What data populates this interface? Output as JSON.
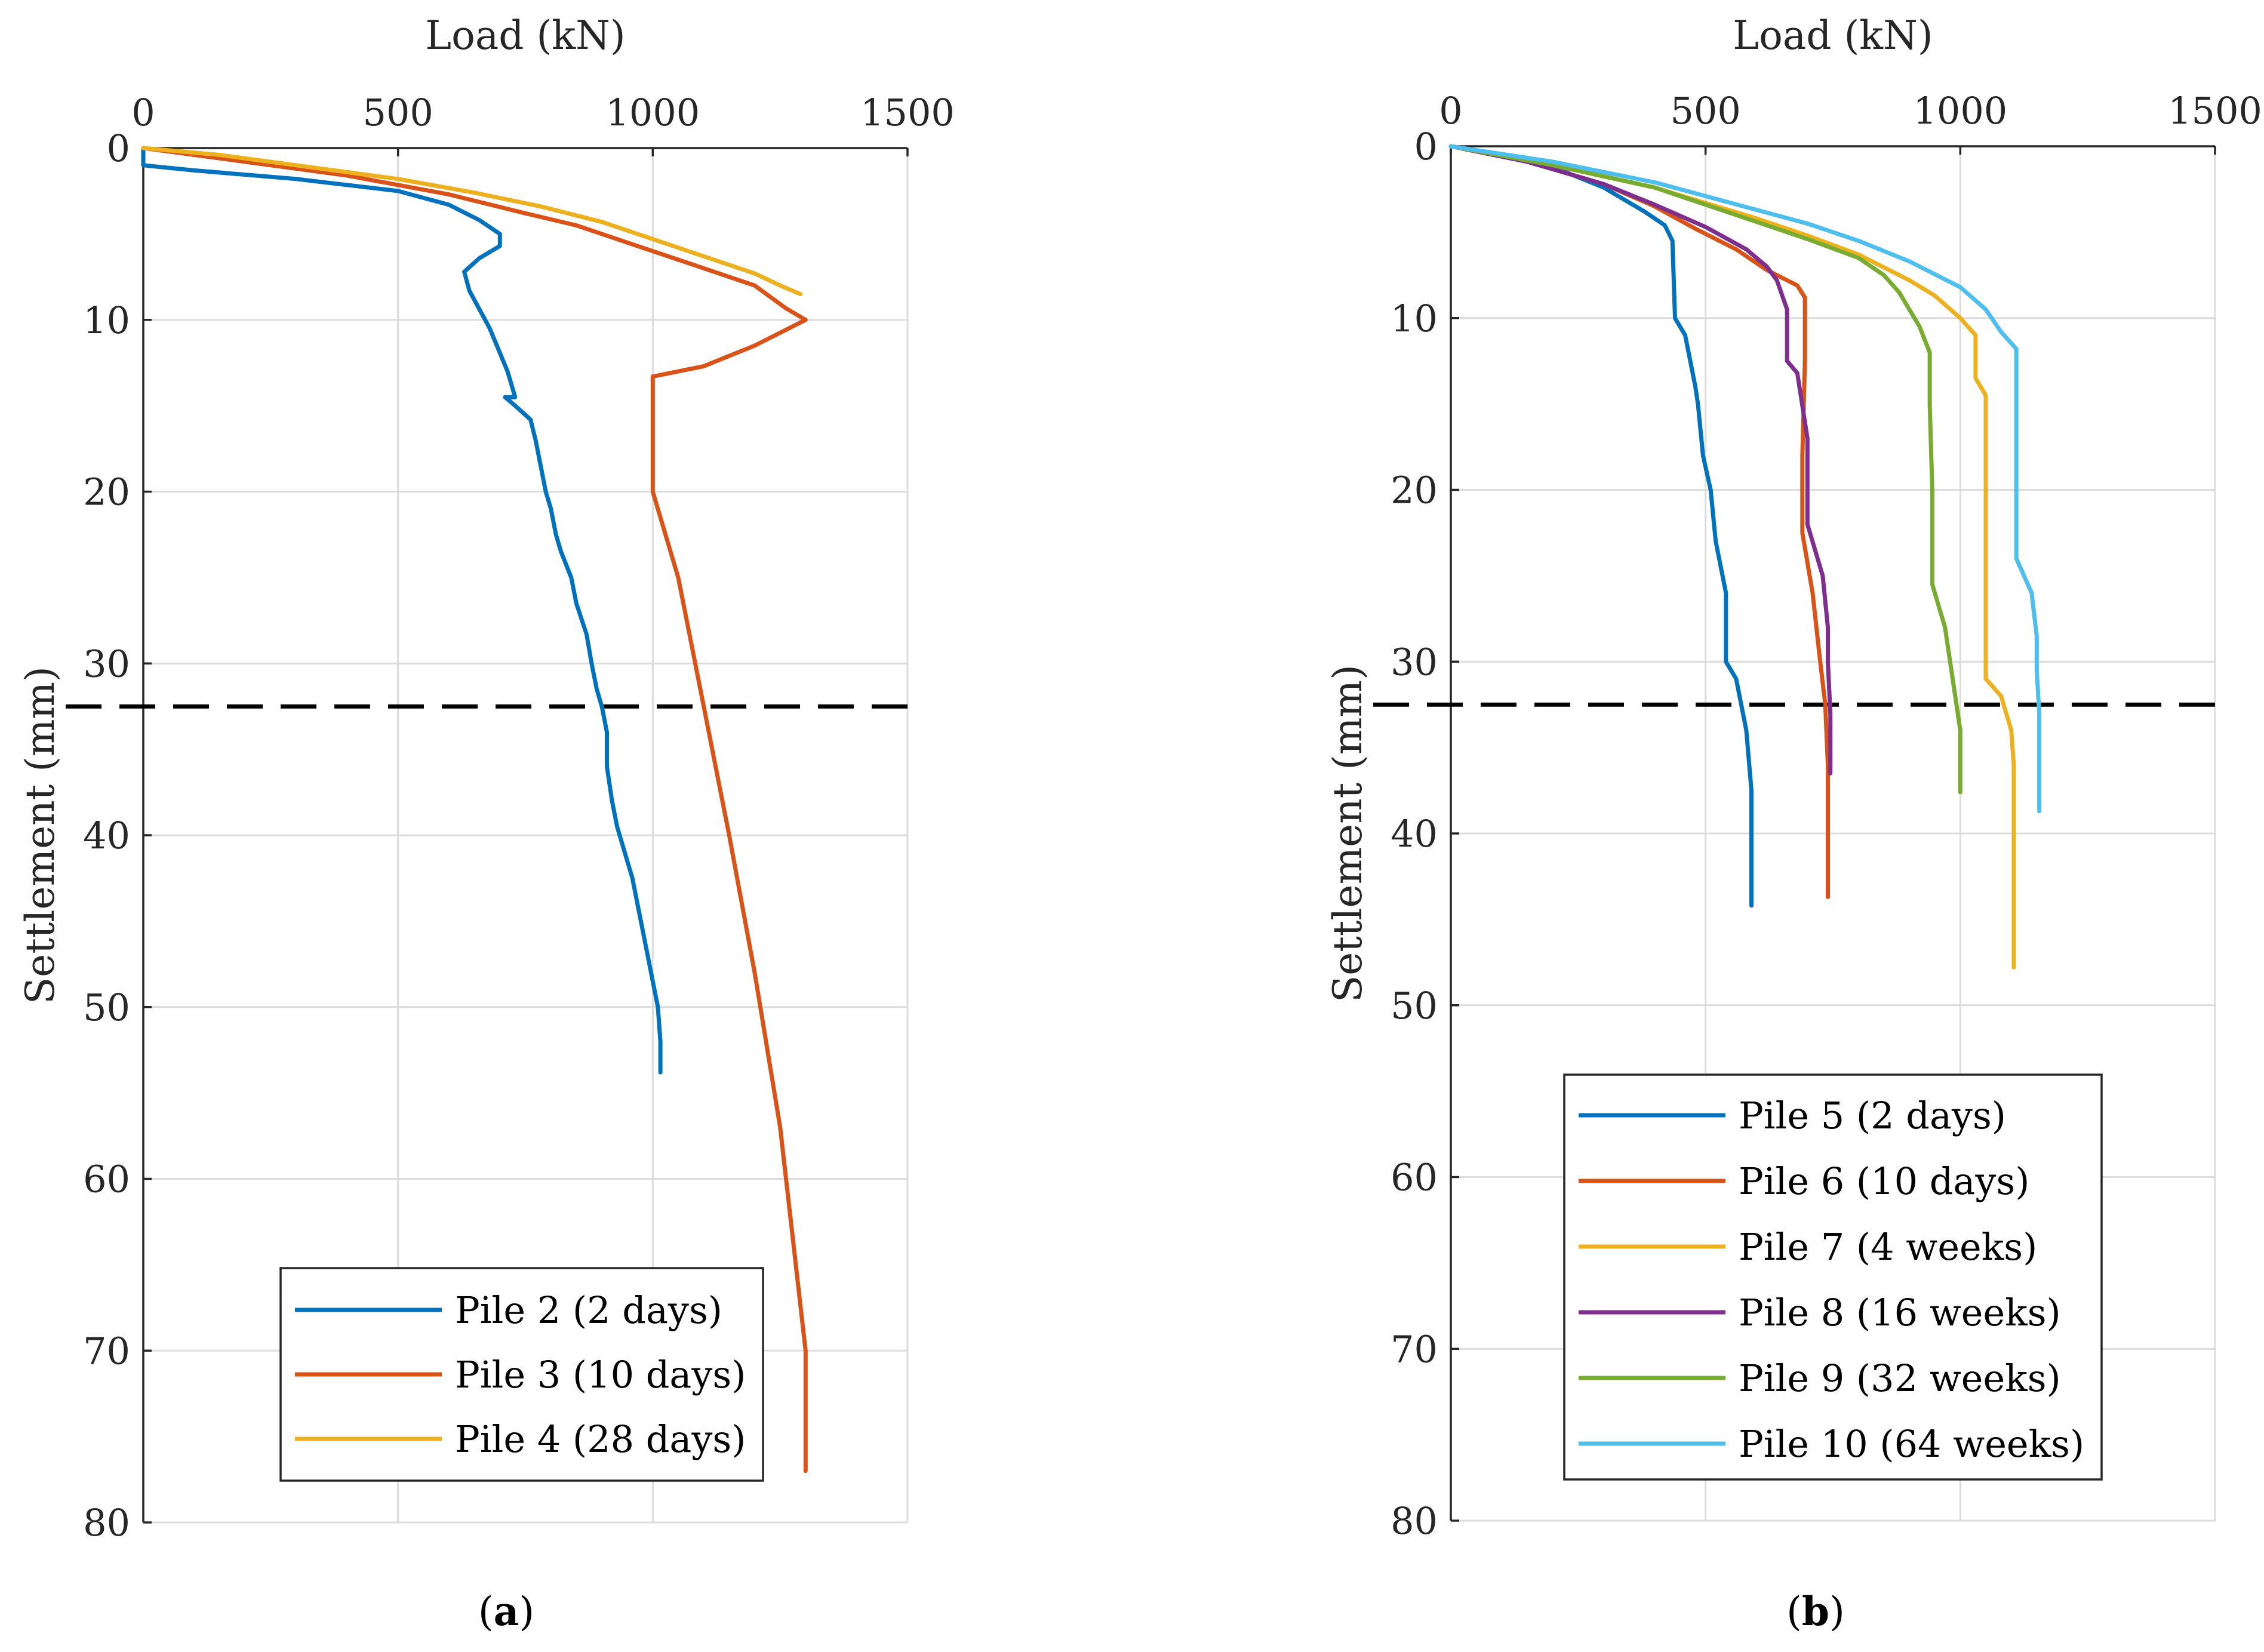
{
  "chart_data": [
    {
      "type": "line",
      "panel_label": "a",
      "xlabel": "Load (kN)",
      "ylabel": "Settlement (mm)",
      "xlim": [
        0,
        1500
      ],
      "ylim": [
        0,
        80
      ],
      "y_reversed": true,
      "x_axis_position": "top",
      "xticks": [
        0,
        500,
        1000,
        1500
      ],
      "yticks": [
        0,
        10,
        20,
        30,
        40,
        50,
        60,
        70,
        80
      ],
      "grid": true,
      "reference_line": {
        "style": "dashed",
        "color": "#000000",
        "y": 32.5
      },
      "legend": {
        "position": "bottom-right"
      },
      "series": [
        {
          "name": "Pile 2 (2 days)",
          "color": "#0072BD",
          "points": [
            [
              0,
              0
            ],
            [
              0,
              1
            ],
            [
              100,
              1.3
            ],
            [
              300,
              1.8
            ],
            [
              500,
              2.5
            ],
            [
              600,
              3.3
            ],
            [
              660,
              4.2
            ],
            [
              700,
              5
            ],
            [
              700,
              5.7
            ],
            [
              660,
              6.4
            ],
            [
              630,
              7.2
            ],
            [
              640,
              8.3
            ],
            [
              680,
              10.5
            ],
            [
              715,
              13
            ],
            [
              730,
              14.5
            ],
            [
              710,
              14.5
            ],
            [
              730,
              15
            ],
            [
              760,
              15.8
            ],
            [
              770,
              17
            ],
            [
              780,
              18.5
            ],
            [
              790,
              20
            ],
            [
              800,
              21
            ],
            [
              810,
              22.5
            ],
            [
              820,
              23.5
            ],
            [
              840,
              25
            ],
            [
              850,
              26.5
            ],
            [
              870,
              28.3
            ],
            [
              880,
              30
            ],
            [
              890,
              31.5
            ],
            [
              900,
              32.5
            ],
            [
              910,
              34
            ],
            [
              910,
              36
            ],
            [
              920,
              38
            ],
            [
              930,
              39.5
            ],
            [
              945,
              41
            ],
            [
              960,
              42.5
            ],
            [
              970,
              44
            ],
            [
              980,
              45.5
            ],
            [
              990,
              47
            ],
            [
              1000,
              48.5
            ],
            [
              1010,
              50
            ],
            [
              1015,
              52
            ],
            [
              1015,
              53.8
            ]
          ]
        },
        {
          "name": "Pile 3 (10 days)",
          "color": "#D95319",
          "points": [
            [
              0,
              0
            ],
            [
              200,
              0.8
            ],
            [
              400,
              1.6
            ],
            [
              600,
              2.7
            ],
            [
              750,
              3.8
            ],
            [
              850,
              4.5
            ],
            [
              950,
              5.5
            ],
            [
              1050,
              6.5
            ],
            [
              1150,
              7.5
            ],
            [
              1200,
              8
            ],
            [
              1260,
              9.3
            ],
            [
              1300,
              10
            ],
            [
              1200,
              11.5
            ],
            [
              1100,
              12.7
            ],
            [
              1000,
              13.3
            ],
            [
              1000,
              14.5
            ],
            [
              1000,
              17
            ],
            [
              1000,
              20
            ],
            [
              1050,
              25
            ],
            [
              1100,
              32.5
            ],
            [
              1150,
              40
            ],
            [
              1200,
              48
            ],
            [
              1250,
              57
            ],
            [
              1300,
              70
            ],
            [
              1300,
              77
            ]
          ]
        },
        {
          "name": "Pile 4 (28 days)",
          "color": "#EDB120",
          "points": [
            [
              0,
              0
            ],
            [
              150,
              0.4
            ],
            [
              300,
              1
            ],
            [
              500,
              1.8
            ],
            [
              650,
              2.6
            ],
            [
              780,
              3.4
            ],
            [
              900,
              4.3
            ],
            [
              1000,
              5.3
            ],
            [
              1100,
              6.3
            ],
            [
              1150,
              6.8
            ],
            [
              1200,
              7.3
            ],
            [
              1250,
              8
            ],
            [
              1290,
              8.5
            ]
          ]
        }
      ]
    },
    {
      "type": "line",
      "panel_label": "b",
      "xlabel": "Load (kN)",
      "ylabel": "Settlement (mm)",
      "xlim": [
        0,
        1500
      ],
      "ylim": [
        0,
        80
      ],
      "y_reversed": true,
      "x_axis_position": "top",
      "xticks": [
        0,
        500,
        1000,
        1500
      ],
      "yticks": [
        0,
        10,
        20,
        30,
        40,
        50,
        60,
        70,
        80
      ],
      "grid": true,
      "reference_line": {
        "style": "dashed",
        "color": "#000000",
        "y": 32.5
      },
      "legend": {
        "position": "bottom-right"
      },
      "series": [
        {
          "name": "Pile 5 (2 days)",
          "color": "#0072BD",
          "points": [
            [
              0,
              0
            ],
            [
              100,
              0.5
            ],
            [
              200,
              1.2
            ],
            [
              300,
              2.4
            ],
            [
              380,
              3.8
            ],
            [
              420,
              4.6
            ],
            [
              435,
              5.5
            ],
            [
              440,
              10
            ],
            [
              460,
              11
            ],
            [
              480,
              14
            ],
            [
              485,
              15
            ],
            [
              495,
              18
            ],
            [
              510,
              20
            ],
            [
              520,
              23
            ],
            [
              540,
              26
            ],
            [
              540,
              30
            ],
            [
              560,
              31
            ],
            [
              580,
              34
            ],
            [
              590,
              37.5
            ],
            [
              590,
              44.2
            ]
          ]
        },
        {
          "name": "Pile 6 (10 days)",
          "color": "#D95319",
          "points": [
            [
              0,
              0
            ],
            [
              150,
              0.9
            ],
            [
              300,
              2.2
            ],
            [
              400,
              3.5
            ],
            [
              480,
              4.8
            ],
            [
              560,
              6
            ],
            [
              620,
              7.2
            ],
            [
              680,
              8.1
            ],
            [
              695,
              8.8
            ],
            [
              695,
              12.5
            ],
            [
              690,
              18
            ],
            [
              690,
              22.5
            ],
            [
              710,
              26
            ],
            [
              725,
              30
            ],
            [
              735,
              32.5
            ],
            [
              740,
              36
            ],
            [
              740,
              43.7
            ]
          ]
        },
        {
          "name": "Pile 7 (4 weeks)",
          "color": "#EDB120",
          "points": [
            [
              0,
              0
            ],
            [
              200,
              1.1
            ],
            [
              400,
              2.4
            ],
            [
              600,
              4.2
            ],
            [
              700,
              5.2
            ],
            [
              800,
              6.3
            ],
            [
              900,
              7.8
            ],
            [
              950,
              8.7
            ],
            [
              1000,
              10
            ],
            [
              1030,
              11
            ],
            [
              1030,
              13.5
            ],
            [
              1050,
              14.5
            ],
            [
              1050,
              18
            ],
            [
              1050,
              31
            ],
            [
              1080,
              32
            ],
            [
              1100,
              34
            ],
            [
              1105,
              36
            ],
            [
              1105,
              39
            ],
            [
              1105,
              47.8
            ]
          ]
        },
        {
          "name": "Pile 8 (16 weeks)",
          "color": "#7E2F8E",
          "points": [
            [
              0,
              0
            ],
            [
              150,
              0.9
            ],
            [
              300,
              2.2
            ],
            [
              400,
              3.4
            ],
            [
              500,
              4.7
            ],
            [
              580,
              6
            ],
            [
              620,
              7
            ],
            [
              640,
              7.8
            ],
            [
              660,
              9.5
            ],
            [
              660,
              12.5
            ],
            [
              680,
              13.2
            ],
            [
              700,
              17
            ],
            [
              700,
              22
            ],
            [
              730,
              25
            ],
            [
              740,
              28
            ],
            [
              740,
              30
            ],
            [
              745,
              33
            ],
            [
              745,
              36.5
            ]
          ]
        },
        {
          "name": "Pile 9 (32 weeks)",
          "color": "#77AC30",
          "points": [
            [
              0,
              0
            ],
            [
              200,
              1.1
            ],
            [
              400,
              2.4
            ],
            [
              600,
              4.4
            ],
            [
              700,
              5.4
            ],
            [
              800,
              6.5
            ],
            [
              850,
              7.5
            ],
            [
              880,
              8.5
            ],
            [
              900,
              9.5
            ],
            [
              920,
              10.5
            ],
            [
              940,
              12
            ],
            [
              940,
              15
            ],
            [
              945,
              20
            ],
            [
              945,
              25.5
            ],
            [
              970,
              28
            ],
            [
              990,
              32
            ],
            [
              1000,
              34
            ],
            [
              1000,
              37.6
            ]
          ]
        },
        {
          "name": "Pile 10 (64 weeks)",
          "color": "#4DBEEE",
          "points": [
            [
              0,
              0
            ],
            [
              200,
              0.9
            ],
            [
              400,
              2.1
            ],
            [
              600,
              3.7
            ],
            [
              700,
              4.5
            ],
            [
              800,
              5.5
            ],
            [
              900,
              6.7
            ],
            [
              1000,
              8.2
            ],
            [
              1050,
              9.5
            ],
            [
              1080,
              10.8
            ],
            [
              1110,
              11.8
            ],
            [
              1110,
              20
            ],
            [
              1110,
              24
            ],
            [
              1140,
              26
            ],
            [
              1150,
              28.5
            ],
            [
              1150,
              30.5
            ],
            [
              1155,
              33
            ],
            [
              1155,
              38.7
            ]
          ]
        }
      ]
    }
  ]
}
